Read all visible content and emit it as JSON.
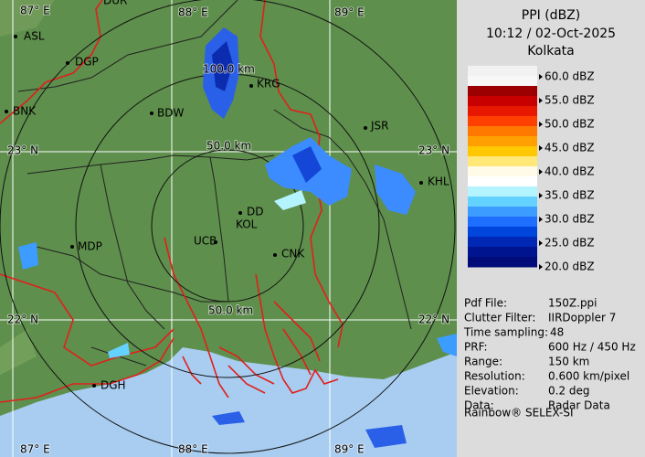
{
  "map": {
    "grid_labels": [
      "87° E",
      "88° E",
      "89° E",
      "23° N",
      "23° N",
      "22° N",
      "22° N",
      "87° E",
      "88° E",
      "89° E"
    ],
    "range_labels": [
      "100.0 km",
      "50.0 km",
      "50.0 km"
    ],
    "cities": [
      "DUR",
      "ASL",
      "DGP",
      "BNK",
      "BDW",
      "KRG",
      "JSR",
      "KHL",
      "MDP",
      "DD",
      "KOL",
      "UCB",
      "CNK",
      "DGH"
    ]
  },
  "panel": {
    "title": "PPI (dBZ)",
    "time": "10:12 / 02-Oct-2025",
    "site": "Kolkata",
    "legend": {
      "labels": [
        "60.0 dBZ",
        "55.0 dBZ",
        "50.0 dBZ",
        "45.0 dBZ",
        "40.0 dBZ",
        "35.0 dBZ",
        "30.0 dBZ",
        "25.0 dBZ",
        "20.0 dBZ"
      ],
      "colors": [
        "#f2f2f2",
        "#f7f7f7",
        "#9c0000",
        "#c80000",
        "#e81800",
        "#ff4000",
        "#ff7800",
        "#ffa000",
        "#ffc800",
        "#ffe878",
        "#fffbe8",
        "#ffffff",
        "#b4f4ff",
        "#64d2ff",
        "#3c9cff",
        "#1e6eff",
        "#0046dc",
        "#0028b4",
        "#001490",
        "#000a78"
      ]
    },
    "info": [
      [
        "Pdf File:",
        "150Z.ppi"
      ],
      [
        "Clutter Filter:",
        "IIRDoppler 7"
      ],
      [
        "Time sampling:",
        "48"
      ],
      [
        "PRF:",
        "600 Hz / 450 Hz"
      ],
      [
        "Range:",
        "150 km"
      ],
      [
        "Resolution:",
        "0.600 km/pixel"
      ],
      [
        "Elevation:",
        "0.2 deg"
      ],
      [
        "Data:",
        "Radar Data"
      ]
    ],
    "footer": "Rainbow® SELEX-SI"
  }
}
